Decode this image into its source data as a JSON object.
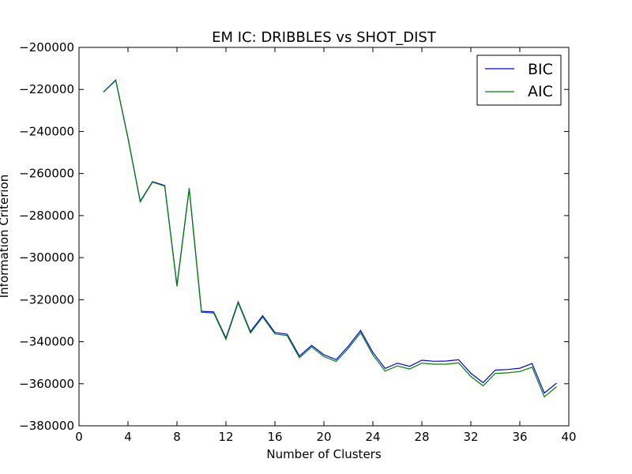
{
  "chart_data": {
    "type": "line",
    "title": "EM IC: DRIBBLES vs SHOT_DIST",
    "xlabel": "Number of Clusters",
    "ylabel": "Information Criterion",
    "xlim": [
      0,
      40
    ],
    "ylim": [
      -380000,
      -200000
    ],
    "xticks": [
      0,
      4,
      8,
      12,
      16,
      20,
      24,
      28,
      32,
      36,
      40
    ],
    "yticks": [
      -200000,
      -220000,
      -240000,
      -260000,
      -280000,
      -300000,
      -320000,
      -340000,
      -360000,
      -380000
    ],
    "xtick_labels": [
      "0",
      "4",
      "8",
      "12",
      "16",
      "20",
      "24",
      "28",
      "32",
      "36",
      "40"
    ],
    "ytick_labels": [
      "−200000",
      "−220000",
      "−240000",
      "−260000",
      "−280000",
      "−300000",
      "−320000",
      "−340000",
      "−360000",
      "−380000"
    ],
    "grid": false,
    "legend_position": "top-right",
    "x": [
      2,
      3,
      4,
      5,
      6,
      7,
      8,
      9,
      10,
      11,
      12,
      13,
      14,
      15,
      16,
      17,
      18,
      19,
      20,
      21,
      22,
      23,
      24,
      25,
      26,
      27,
      28,
      29,
      30,
      31,
      32,
      33,
      34,
      35,
      36,
      37,
      38,
      39
    ],
    "series": [
      {
        "name": "BIC",
        "color": "#0000ff",
        "values": [
          -221200,
          -215500,
          -243000,
          -273200,
          -263900,
          -265700,
          -313200,
          -267000,
          -325500,
          -325800,
          -338300,
          -321000,
          -335200,
          -327600,
          -335600,
          -336400,
          -346800,
          -341700,
          -346200,
          -348500,
          -342100,
          -334600,
          -345100,
          -352700,
          -350200,
          -351700,
          -348800,
          -349300,
          -349200,
          -348600,
          -355000,
          -359500,
          -353500,
          -353200,
          -352600,
          -350400,
          -364400,
          -359700
        ]
      },
      {
        "name": "AIC",
        "color": "#008000",
        "values": [
          -221300,
          -215700,
          -243200,
          -273500,
          -264100,
          -266000,
          -313700,
          -267300,
          -326000,
          -326300,
          -338900,
          -321500,
          -335800,
          -328200,
          -336300,
          -337100,
          -347600,
          -342500,
          -347100,
          -349400,
          -343100,
          -335700,
          -346300,
          -354000,
          -351500,
          -353000,
          -350200,
          -350700,
          -350700,
          -350100,
          -356500,
          -361000,
          -355100,
          -354800,
          -354200,
          -352100,
          -366200,
          -361400
        ]
      }
    ]
  }
}
